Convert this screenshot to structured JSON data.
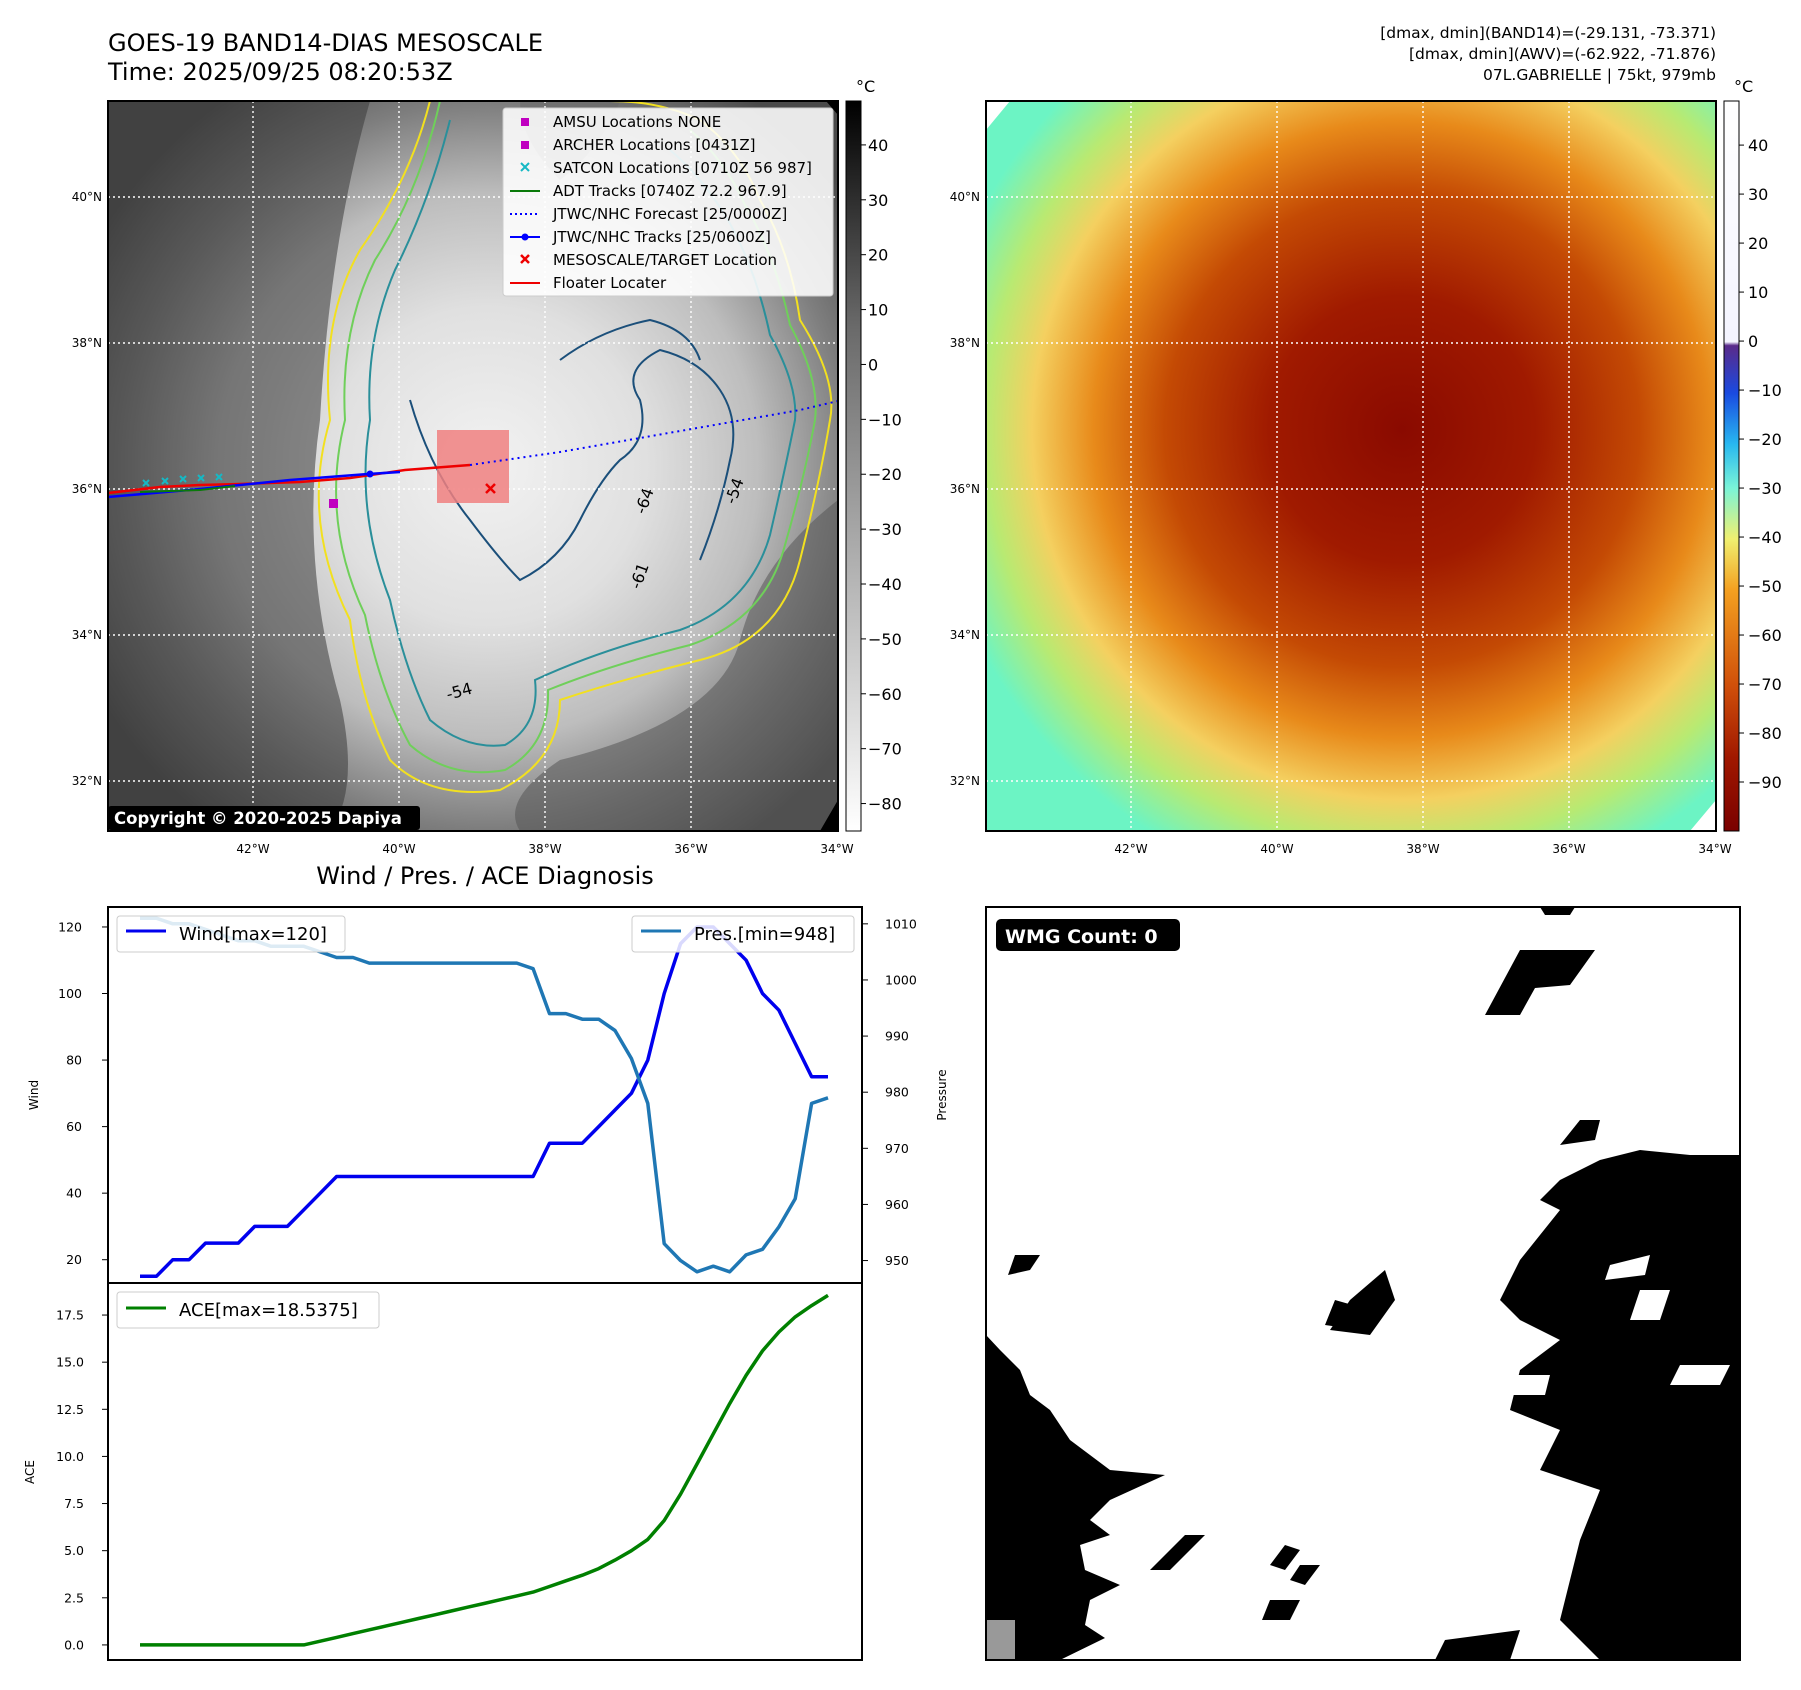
{
  "title": {
    "line1": "GOES-19 BAND14-DIAS MESOSCALE",
    "line2": "Time: 2025/09/25 08:20:53Z"
  },
  "header_right": {
    "line1": "[dmax, dmin](BAND14)=(-29.131, -73.371)",
    "line2": "[dmax, dmin](AWV)=(-62.922, -71.876)",
    "line3": "07L.GABRIELLE | 75kt, 979mb"
  },
  "map": {
    "lat_labels": [
      "40°N",
      "38°N",
      "36°N",
      "34°N",
      "32°N"
    ],
    "lon_labels": [
      "42°W",
      "40°W",
      "38°W",
      "36°W",
      "34°W"
    ],
    "contour_labels": [
      "-54",
      "-64",
      "-61",
      "-54"
    ],
    "copyright": "Copyright © 2020-2025 Dapiya",
    "colors": {
      "contour_yellow": "#f2e01f",
      "contour_green": "#6fcf5a",
      "contour_teal": "#2a8f9a",
      "contour_navy": "#1b4f7a"
    }
  },
  "legend": [
    {
      "label": "AMSU Locations NONE",
      "marker": "square",
      "color": "#c000c0"
    },
    {
      "label": "ARCHER Locations [0431Z]",
      "marker": "square",
      "color": "#c000c0"
    },
    {
      "label": "SATCON Locations [0710Z 56 987]",
      "marker": "x",
      "color": "#16b8c4"
    },
    {
      "label": "ADT Tracks [0740Z 72.2 967.9]",
      "marker": "line",
      "color": "#0a7a0a"
    },
    {
      "label": "JTWC/NHC Forecast [25/0000Z]",
      "marker": "dotted",
      "color": "#0000ff"
    },
    {
      "label": "JTWC/NHC Tracks [25/0600Z]",
      "marker": "line-dot",
      "color": "#0000ff"
    },
    {
      "label": "MESOSCALE/TARGET Location",
      "marker": "x",
      "color": "#ee0000"
    },
    {
      "label": "Floater Locater",
      "marker": "line",
      "color": "#ee0000"
    }
  ],
  "colorbar_gray": {
    "unit": "°C",
    "ticks": [
      "40",
      "30",
      "20",
      "10",
      "0",
      "−10",
      "−20",
      "−30",
      "−40",
      "−50",
      "−60",
      "−70",
      "−80"
    ]
  },
  "colorbar_color": {
    "unit": "°C",
    "ticks": [
      "40",
      "30",
      "20",
      "10",
      "0",
      "−10",
      "−20",
      "−30",
      "−40",
      "−50",
      "−60",
      "−70",
      "−80",
      "−90"
    ]
  },
  "diag": {
    "title": "Wind / Pres. / ACE Diagnosis",
    "wind_axis_label": "Wind",
    "pres_axis_label": "Pressure",
    "ace_axis_label": "ACE",
    "wind_legend": "Wind[max=120]",
    "pres_legend": "Pres.[min=948]",
    "ace_legend": "ACE[max=18.5375]",
    "wind_ticks": [
      "120",
      "100",
      "80",
      "60",
      "40",
      "20"
    ],
    "pres_ticks": [
      "1010",
      "1000",
      "990",
      "980",
      "970",
      "960",
      "950"
    ],
    "ace_ticks": [
      "17.5",
      "15.0",
      "12.5",
      "10.0",
      "7.5",
      "5.0",
      "2.5",
      "0.0"
    ],
    "wmg_label": "WMG Count: 0"
  },
  "chart_data": [
    {
      "type": "line",
      "title": "Wind / Pres. / ACE Diagnosis",
      "ylabel": "Wind",
      "ylim": [
        13,
        126
      ],
      "series": [
        {
          "name": "Wind[max=120]",
          "color": "#0000ee",
          "values": [
            15,
            15,
            20,
            20,
            25,
            25,
            25,
            30,
            30,
            30,
            35,
            40,
            45,
            45,
            45,
            45,
            45,
            45,
            45,
            45,
            45,
            45,
            45,
            45,
            45,
            55,
            55,
            55,
            60,
            65,
            70,
            80,
            100,
            115,
            120,
            120,
            115,
            110,
            100,
            95,
            85,
            75,
            75
          ]
        }
      ]
    },
    {
      "type": "line",
      "ylabel": "Pressure",
      "ylim": [
        946,
        1013
      ],
      "series": [
        {
          "name": "Pres.[min=948]",
          "color": "#1f77b4",
          "values": [
            1011,
            1011,
            1010,
            1010,
            1009,
            1008,
            1007,
            1007,
            1006,
            1006,
            1006,
            1005,
            1004,
            1004,
            1003,
            1003,
            1003,
            1003,
            1003,
            1003,
            1003,
            1003,
            1003,
            1003,
            1002,
            994,
            994,
            993,
            993,
            991,
            986,
            978,
            953,
            950,
            948,
            949,
            948,
            951,
            952,
            956,
            961,
            978,
            979
          ]
        }
      ]
    },
    {
      "type": "line",
      "ylabel": "ACE",
      "ylim": [
        -0.8,
        19.2
      ],
      "series": [
        {
          "name": "ACE[max=18.5375]",
          "color": "#008000",
          "values": [
            0,
            0,
            0,
            0,
            0,
            0,
            0,
            0,
            0,
            0,
            0,
            0.2,
            0.4,
            0.6,
            0.8,
            1.0,
            1.2,
            1.4,
            1.6,
            1.8,
            2.0,
            2.2,
            2.4,
            2.6,
            2.8,
            3.1,
            3.4,
            3.7,
            4.05,
            4.5,
            5.0,
            5.6,
            6.6,
            8.0,
            9.6,
            11.2,
            12.8,
            14.3,
            15.6,
            16.6,
            17.4,
            18.0,
            18.54
          ]
        }
      ]
    }
  ]
}
